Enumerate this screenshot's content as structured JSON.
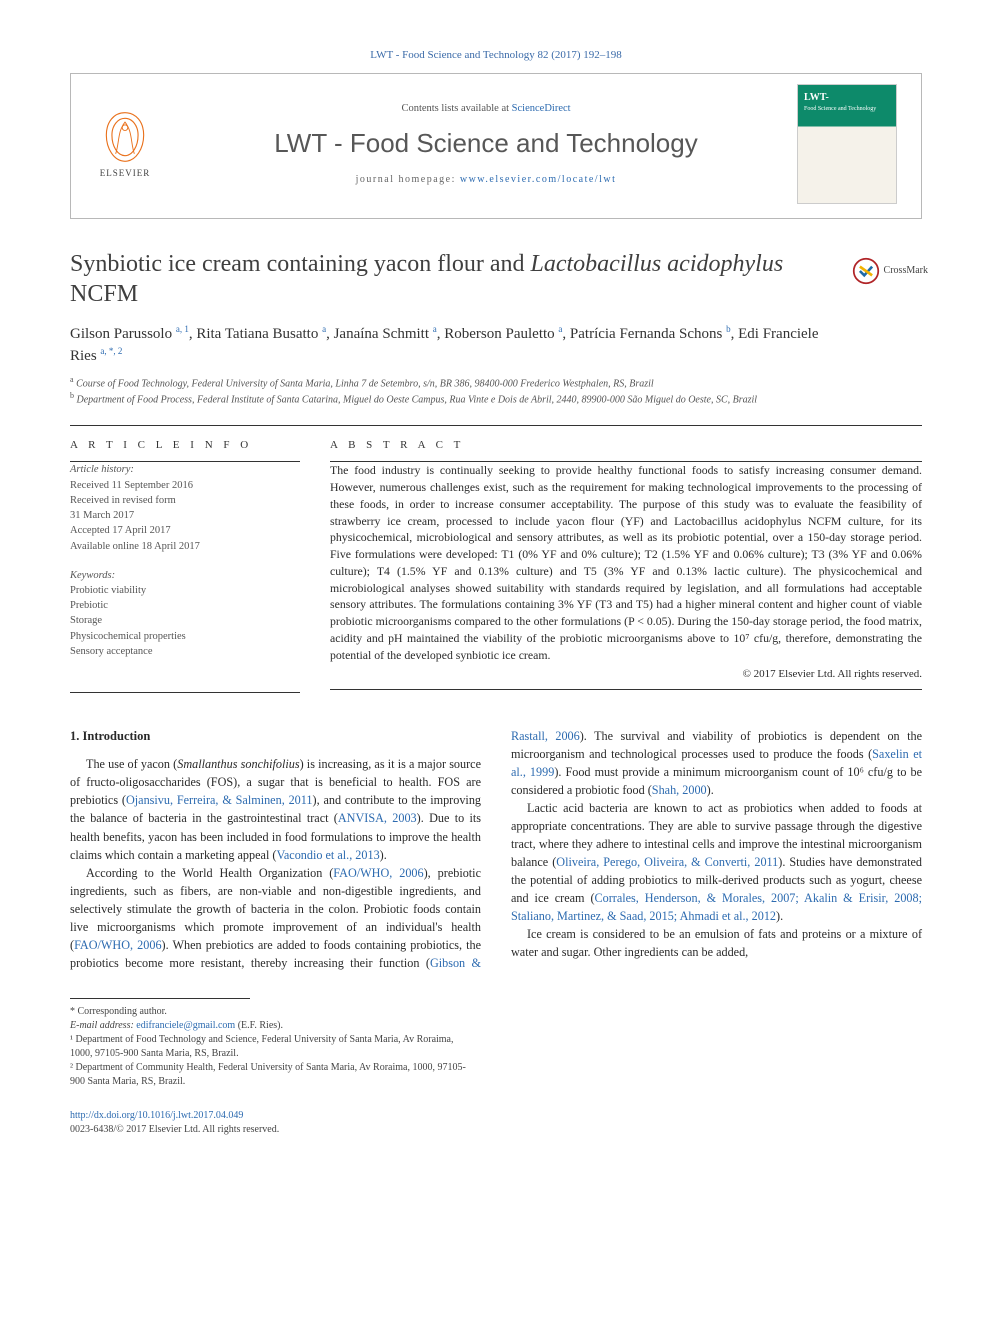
{
  "citation": "LWT - Food Science and Technology 82 (2017) 192–198",
  "header": {
    "contents_prefix": "Contents lists available at ",
    "contents_link": "ScienceDirect",
    "journal_name": "LWT - Food Science and Technology",
    "homepage_prefix": "journal homepage: ",
    "homepage_link": "www.elsevier.com/locate/lwt",
    "elsevier_label": "ELSEVIER",
    "cover_label": "LWT-",
    "cover_sub": "Food Science and Technology"
  },
  "crossmark_label": "CrossMark",
  "title_plain": "Synbiotic ice cream containing yacon flour and ",
  "title_italic": "Lactobacillus acidophylus",
  "title_tail": " NCFM",
  "authors_html": "Gilson Parussolo <sup>a, 1</sup>, Rita Tatiana Busatto <sup>a</sup>, Janaína Schmitt <sup>a</sup>, Roberson Pauletto <sup>a</sup>, Patrícia Fernanda Schons <sup>b</sup>, Edi Franciele Ries <sup>a, *, 2</sup>",
  "affiliations": [
    {
      "sup": "a",
      "text": "Course of Food Technology, Federal University of Santa Maria, Linha 7 de Setembro, s/n, BR 386, 98400-000 Frederico Westphalen, RS, Brazil"
    },
    {
      "sup": "b",
      "text": "Department of Food Process, Federal Institute of Santa Catarina, Miguel do Oeste Campus, Rua Vinte e Dois de Abril, 2440, 89900-000 São Miguel do Oeste, SC, Brazil"
    }
  ],
  "info_heading": "A R T I C L E   I N F O",
  "abstract_heading": "A B S T R A C T",
  "history": {
    "label": "Article history:",
    "lines": [
      "Received 11 September 2016",
      "Received in revised form",
      "31 March 2017",
      "Accepted 17 April 2017",
      "Available online 18 April 2017"
    ]
  },
  "keywords": {
    "label": "Keywords:",
    "items": [
      "Probiotic viability",
      "Prebiotic",
      "Storage",
      "Physicochemical properties",
      "Sensory acceptance"
    ]
  },
  "abstract_text": "The food industry is continually seeking to provide healthy functional foods to satisfy increasing consumer demand. However, numerous challenges exist, such as the requirement for making technological improvements to the processing of these foods, in order to increase consumer acceptability. The purpose of this study was to evaluate the feasibility of strawberry ice cream, processed to include yacon flour (YF) and Lactobacillus acidophylus NCFM culture, for its physicochemical, microbiological and sensory attributes, as well as its probiotic potential, over a 150-day storage period. Five formulations were developed: T1 (0% YF and 0% culture); T2 (1.5% YF and 0.06% culture); T3 (3% YF and 0.06% culture); T4 (1.5% YF and 0.13% culture) and T5 (3% YF and 0.13% lactic culture). The physicochemical and microbiological analyses showed suitability with standards required by legislation, and all formulations had acceptable sensory attributes. The formulations containing 3% YF (T3 and T5) had a higher mineral content and higher count of viable probiotic microorganisms compared to the other formulations (P < 0.05). During the 150-day storage period, the food matrix, acidity and pH maintained the viability of the probiotic microorganisms above to 10⁷ cfu/g, therefore, demonstrating the potential of the developed synbiotic ice cream.",
  "abstract_copyright": "© 2017 Elsevier Ltd. All rights reserved.",
  "intro_heading": "1. Introduction",
  "intro": {
    "p1a": "The use of yacon (",
    "p1i": "Smallanthus sonchifolius",
    "p1b": ") is increasing, as it is a major source of fructo-oligosaccharides (FOS), a sugar that is beneficial to health. FOS are prebiotics (",
    "p1c": "Ojansivu, Ferreira, & Salminen, 2011",
    "p1d": "), and contribute to the improving the balance of bacteria in the gastrointestinal tract (",
    "p1e": "ANVISA, 2003",
    "p1f": "). Due to its health benefits, yacon has been included in food formulations to improve the health claims which contain a marketing appeal (",
    "p1g": "Vacondio et al., 2013",
    "p1h": ").",
    "p2a": "According to the World Health Organization (",
    "p2b": "FAO/WHO, 2006",
    "p2c": "), prebiotic ingredients, such as fibers, are non-viable and non-digestible ingredients, and selectively stimulate the growth of bacteria in the colon. Probiotic foods contain live microorganisms which promote improvement of an individual's health (",
    "p2d": "FAO/WHO, 2006",
    "p2e": "). When prebiotics are added to foods containing probiotics, the probiotics become more resistant, thereby increasing their function (",
    "p2f": "Gibson & Rastall, 2006",
    "p2g": "). The survival and viability of probiotics is dependent on the microorganism and technological processes used to produce the foods (",
    "p2h": "Saxelin et al., 1999",
    "p2i": "). Food must provide a minimum microorganism count of 10⁶ cfu/g to be considered a probiotic food (",
    "p2j": "Shah, 2000",
    "p2k": ").",
    "p3a": "Lactic acid bacteria are known to act as probiotics when added to foods at appropriate concentrations. They are able to survive passage through the digestive tract, where they adhere to intestinal cells and improve the intestinal microorganism balance (",
    "p3b": "Oliveira, Perego, Oliveira, & Converti, 2011",
    "p3c": "). Studies have demonstrated the potential of adding probiotics to milk-derived products such as yogurt, cheese and ice cream (",
    "p3d": "Corrales, Henderson, & Morales, 2007; Akalin & Erisir, 2008; Staliano, Martinez, & Saad, 2015; Ahmadi et al., 2012",
    "p3e": ").",
    "p4": "Ice cream is considered to be an emulsion of fats and proteins or a mixture of water and sugar. Other ingredients can be added,"
  },
  "footnotes": {
    "corr": "* Corresponding author.",
    "email_label": "E-mail address: ",
    "email": "edifranciele@gmail.com",
    "email_tail": " (E.F. Ries).",
    "n1": "¹ Department of Food Technology and Science, Federal University of Santa Maria, Av Roraima, 1000, 97105-900 Santa Maria, RS, Brazil.",
    "n2": "² Department of Community Health, Federal University of Santa Maria, Av Roraima, 1000, 97105-900 Santa Maria, RS, Brazil."
  },
  "doi": {
    "url": "http://dx.doi.org/10.1016/j.lwt.2017.04.049",
    "issn_cp": "0023-6438/© 2017 Elsevier Ltd. All rights reserved."
  },
  "colors": {
    "link": "#2d6bb0",
    "elsevier_orange": "#e9711c",
    "text": "#2a2a2a",
    "muted": "#555555",
    "rule": "#333333"
  }
}
